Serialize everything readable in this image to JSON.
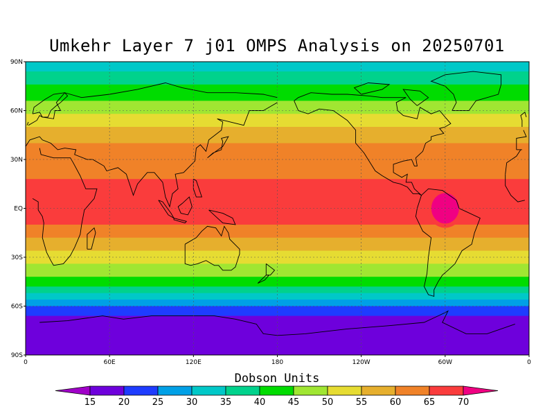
{
  "map": {
    "title": "Umkehr Layer 7 j01 OMPS Analysis on 20250701",
    "lat_labels": [
      "90N",
      "60N",
      "30N",
      "EQ",
      "30S",
      "60S",
      "90S"
    ],
    "lon_labels": [
      "0",
      "60E",
      "120E",
      "180",
      "120W",
      "60W",
      "0"
    ],
    "colorbar": {
      "title": "Dobson Units",
      "levels": [
        15,
        20,
        25,
        30,
        35,
        40,
        45,
        50,
        55,
        60,
        65,
        70
      ],
      "colors": [
        "#a000c8",
        "#6e00dc",
        "#1e3cff",
        "#00a0e6",
        "#00c8c8",
        "#00d28c",
        "#00dc00",
        "#a0e632",
        "#e6dc32",
        "#e6af2d",
        "#f08228",
        "#fa3c3c",
        "#f00082"
      ]
    },
    "bands": [
      {
        "lat_top": 90,
        "lat_bot": 84,
        "value": 30
      },
      {
        "lat_top": 84,
        "lat_bot": 76,
        "value": 35
      },
      {
        "lat_top": 76,
        "lat_bot": 66,
        "value": 40
      },
      {
        "lat_top": 66,
        "lat_bot": 58,
        "value": 45
      },
      {
        "lat_top": 58,
        "lat_bot": 50,
        "value": 50
      },
      {
        "lat_top": 50,
        "lat_bot": 40,
        "value": 55
      },
      {
        "lat_top": 40,
        "lat_bot": 18,
        "value": 60
      },
      {
        "lat_top": 18,
        "lat_bot": -10,
        "value": 65
      },
      {
        "lat_top": -10,
        "lat_bot": -18,
        "value": 60
      },
      {
        "lat_top": -18,
        "lat_bot": -26,
        "value": 55
      },
      {
        "lat_top": -26,
        "lat_bot": -34,
        "value": 50
      },
      {
        "lat_top": -34,
        "lat_bot": -42,
        "value": 45
      },
      {
        "lat_top": -42,
        "lat_bot": -48,
        "value": 40
      },
      {
        "lat_top": -48,
        "lat_bot": -52,
        "value": 35
      },
      {
        "lat_top": -52,
        "lat_bot": -56,
        "value": 30
      },
      {
        "lat_top": -56,
        "lat_bot": -60,
        "value": 25
      },
      {
        "lat_top": -60,
        "lat_bot": -66,
        "value": 20
      },
      {
        "lat_top": -66,
        "lat_bot": -90,
        "value": 15
      }
    ],
    "hotspot": {
      "lon": -60,
      "lat": 0,
      "value": 70
    },
    "grid": true
  }
}
